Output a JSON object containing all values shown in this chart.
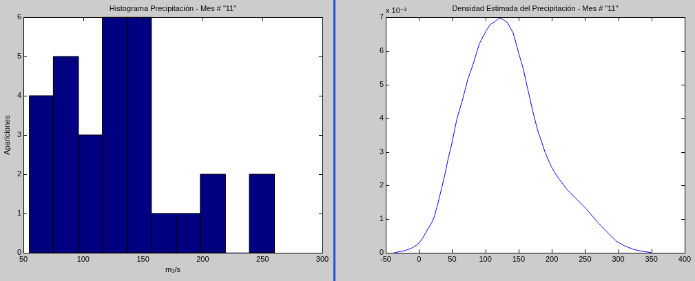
{
  "chart_data": [
    {
      "type": "histogram",
      "title": "Histograma Precipitación - Mes # \"11\"",
      "xlabel": "m₃/s",
      "ylabel": "Apariciones",
      "bins": [
        55,
        75,
        96,
        116,
        137,
        157,
        178,
        198,
        219,
        239,
        260
      ],
      "values": [
        4,
        5,
        3,
        6,
        6,
        1,
        1,
        2,
        0,
        2
      ],
      "color": "#000080",
      "xlim": [
        50,
        300
      ],
      "xticks": [
        50,
        100,
        150,
        200,
        250,
        300
      ],
      "ylim": [
        0,
        6
      ],
      "yticks": [
        0,
        1,
        2,
        3,
        4,
        5,
        6
      ]
    },
    {
      "type": "line",
      "title": "Densidad Estimada del Precipitación - Mes # \"11\"",
      "color": "#0000ff",
      "marker": "none",
      "x": [
        -37,
        -30,
        -20,
        -11,
        -4,
        1,
        6,
        13,
        19,
        23,
        29,
        34,
        39,
        44,
        49,
        57,
        66,
        74,
        81,
        91,
        100,
        107,
        116,
        121,
        124,
        133,
        142,
        150,
        157,
        164,
        171,
        178,
        185,
        190,
        199,
        209,
        223,
        238,
        252,
        269,
        283,
        297,
        309,
        323,
        337,
        349
      ],
      "values": [
        0,
        0.03,
        0.07,
        0.14,
        0.22,
        0.31,
        0.45,
        0.69,
        0.89,
        1.06,
        1.5,
        1.91,
        2.32,
        2.8,
        3.2,
        3.97,
        4.58,
        5.19,
        5.57,
        6.22,
        6.56,
        6.78,
        6.9,
        6.98,
        6.97,
        6.85,
        6.53,
        5.95,
        5.47,
        4.85,
        4.24,
        3.69,
        3.28,
        2.98,
        2.57,
        2.24,
        1.88,
        1.58,
        1.3,
        0.91,
        0.62,
        0.35,
        0.21,
        0.1,
        0.04,
        0.01
      ],
      "xlim": [
        -50,
        400
      ],
      "xticks": [
        -50,
        0,
        50,
        100,
        150,
        200,
        250,
        300,
        350,
        400
      ],
      "ylim": [
        0,
        7
      ],
      "yticks": [
        0,
        1,
        2,
        3,
        4,
        5,
        6,
        7
      ],
      "annotations": [
        "x 10⁻³"
      ]
    }
  ]
}
